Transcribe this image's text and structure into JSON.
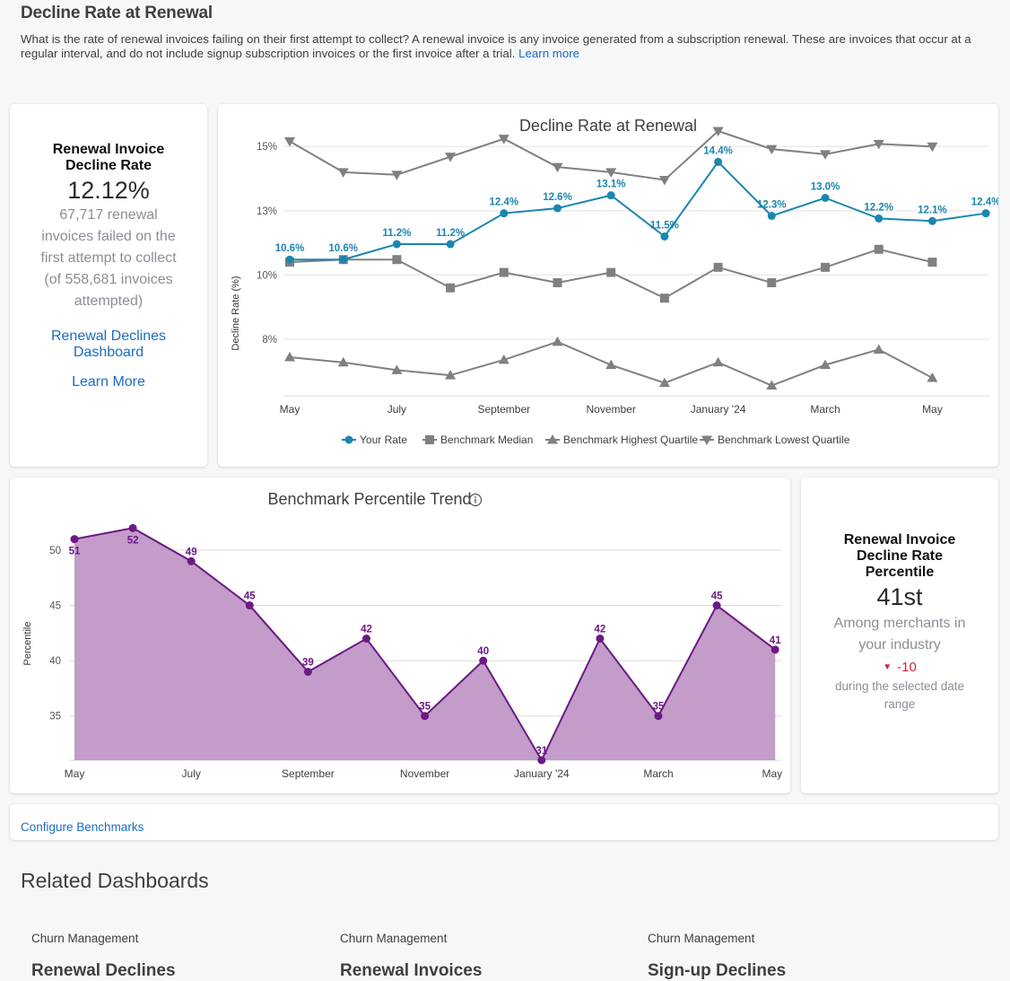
{
  "header": {
    "title": "Decline Rate at Renewal",
    "description": "What is the rate of renewal invoices failing on their first attempt to collect? A renewal invoice is any invoice generated from a subscription renewal. These are invoices that occur at a regular interval, and do not include signup subscription invoices or the first invoice after a trial.",
    "learn_more": "Learn more"
  },
  "kpi_card": {
    "title_line1": "Renewal Invoice",
    "title_line2": "Decline Rate",
    "value": "12.12%",
    "sub_lines": [
      "67,717 renewal",
      "invoices failed on the",
      "first attempt to collect",
      "(of 558,681 invoices",
      "attempted)"
    ],
    "link_dashboard_line1": "Renewal Declines",
    "link_dashboard_line2": "Dashboard",
    "link_learn_more": "Learn More"
  },
  "percentile_card": {
    "title_line1": "Renewal Invoice",
    "title_line2": "Decline Rate",
    "title_line3": "Percentile",
    "value": "41st",
    "sub_line1": "Among merchants in",
    "sub_line2": "your industry",
    "change_icon": "triangle-down-icon",
    "change": "-10",
    "change_color": "#d0223a",
    "note_line1": "during the selected date",
    "note_line2": "range"
  },
  "configure": {
    "label": "Configure Benchmarks"
  },
  "related": {
    "title": "Related Dashboards",
    "items": [
      {
        "category": "Churn Management",
        "name": "Renewal Declines"
      },
      {
        "category": "Churn Management",
        "name": "Renewal Invoices"
      },
      {
        "category": "Churn Management",
        "name": "Sign-up Declines"
      }
    ]
  },
  "colors": {
    "your_rate": "#1a86b0",
    "benchmark": "#808080",
    "percentile_line": "#6b1a84",
    "percentile_fill": "#c39cc9",
    "link": "#1a6cc4"
  },
  "chart_data": [
    {
      "type": "line",
      "title": "Decline Rate at Renewal",
      "xlabel": "",
      "ylabel": "Decline Rate (%)",
      "x": [
        "May 2023",
        "Jun 2023",
        "Jul 2023",
        "Aug 2023",
        "Sep 2023",
        "Oct 2023",
        "Nov 2023",
        "Dec 2023",
        "Jan 2024",
        "Feb 2024",
        "Mar 2024",
        "Apr 2024",
        "May 2024",
        "Jun 2024"
      ],
      "x_tick_labels": [
        {
          "index": 0,
          "label": "May"
        },
        {
          "index": 2,
          "label": "July"
        },
        {
          "index": 4,
          "label": "September"
        },
        {
          "index": 6,
          "label": "November"
        },
        {
          "index": 8,
          "label": "January '24"
        },
        {
          "index": 10,
          "label": "March"
        },
        {
          "index": 12,
          "label": "May"
        }
      ],
      "y_ticks": [
        {
          "value": 15,
          "label": "15%"
        },
        {
          "value": 12.5,
          "label": "13%"
        },
        {
          "value": 10,
          "label": "10%"
        },
        {
          "value": 7.5,
          "label": "8%"
        }
      ],
      "ylim": [
        5.3,
        16.3
      ],
      "grid": true,
      "legend": "bottom",
      "series": [
        {
          "name": "Your Rate",
          "marker": "circle",
          "values": [
            10.6,
            10.6,
            11.2,
            11.2,
            12.4,
            12.6,
            13.1,
            11.5,
            14.4,
            12.3,
            13.0,
            12.2,
            12.1,
            12.4
          ],
          "data_labels": [
            "10.6%",
            "10.6%",
            "11.2%",
            "11.2%",
            "12.4%",
            "12.6%",
            "13.1%",
            "11.5%",
            "14.4%",
            "12.3%",
            "13.0%",
            "12.2%",
            "12.1%",
            "12.4%"
          ]
        },
        {
          "name": "Benchmark Median",
          "marker": "square",
          "values": [
            10.5,
            10.6,
            10.6,
            9.5,
            10.1,
            9.7,
            10.1,
            9.1,
            10.3,
            9.7,
            10.3,
            11.0,
            10.5,
            null
          ]
        },
        {
          "name": "Benchmark Highest Quartile",
          "marker": "triangle-up",
          "values": [
            6.8,
            6.6,
            6.3,
            6.1,
            6.7,
            7.4,
            6.5,
            5.8,
            6.6,
            5.7,
            6.5,
            7.1,
            6.0,
            null
          ]
        },
        {
          "name": "Benchmark Lowest Quartile",
          "marker": "triangle-down",
          "values": [
            15.2,
            14.0,
            13.9,
            14.6,
            15.3,
            14.2,
            14.0,
            13.7,
            15.6,
            14.9,
            14.7,
            15.1,
            15.0,
            null
          ]
        }
      ]
    },
    {
      "type": "area",
      "title": "Benchmark Percentile Trend",
      "title_icon": "info-icon",
      "xlabel": "",
      "ylabel": "Percentile",
      "x": [
        "May 2023",
        "Jun 2023",
        "Jul 2023",
        "Aug 2023",
        "Sep 2023",
        "Oct 2023",
        "Nov 2023",
        "Dec 2023",
        "Jan 2024",
        "Feb 2024",
        "Mar 2024",
        "Apr 2024",
        "May 2024"
      ],
      "x_tick_labels": [
        {
          "index": 0,
          "label": "May"
        },
        {
          "index": 2,
          "label": "July"
        },
        {
          "index": 4,
          "label": "September"
        },
        {
          "index": 6,
          "label": "November"
        },
        {
          "index": 8,
          "label": "January '24"
        },
        {
          "index": 10,
          "label": "March"
        },
        {
          "index": 12,
          "label": "May"
        }
      ],
      "y_ticks": [
        50,
        45,
        40,
        35
      ],
      "ylim": [
        31,
        53
      ],
      "grid": true,
      "series": [
        {
          "name": "Percentile",
          "values": [
            51,
            52,
            49,
            45,
            39,
            42,
            35,
            40,
            31,
            42,
            35,
            45,
            41
          ]
        }
      ]
    }
  ]
}
